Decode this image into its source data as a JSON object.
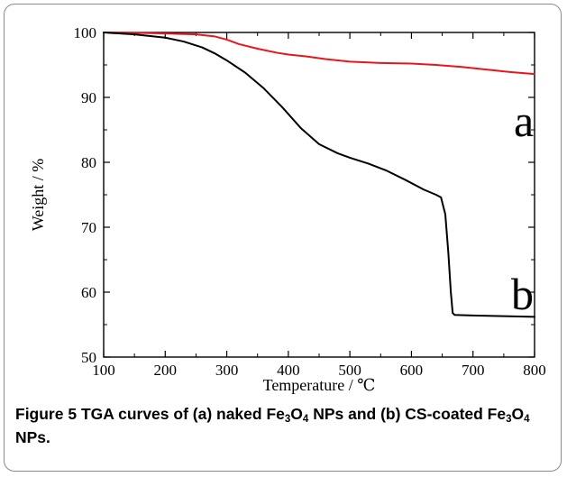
{
  "chart_data": {
    "type": "line",
    "xlabel": "Temperature / ℃",
    "ylabel": "Weight / %",
    "xlim": [
      100,
      800
    ],
    "ylim": [
      50,
      100
    ],
    "xticks": [
      100,
      200,
      300,
      400,
      500,
      600,
      700,
      800
    ],
    "yticks": [
      50,
      60,
      70,
      80,
      90,
      100
    ],
    "grid": false,
    "series": [
      {
        "name": "a",
        "color": "#e8161c",
        "x": [
          100,
          150,
          200,
          250,
          280,
          300,
          320,
          350,
          380,
          400,
          430,
          460,
          500,
          550,
          600,
          640,
          680,
          720,
          760,
          800
        ],
        "y": [
          100,
          99.95,
          99.85,
          99.7,
          99.4,
          98.9,
          98.2,
          97.5,
          96.9,
          96.6,
          96.3,
          95.9,
          95.5,
          95.3,
          95.2,
          95.0,
          94.7,
          94.3,
          93.9,
          93.6
        ]
      },
      {
        "name": "b",
        "color": "#000000",
        "x": [
          100,
          150,
          200,
          230,
          260,
          280,
          300,
          330,
          360,
          390,
          420,
          450,
          480,
          500,
          530,
          560,
          590,
          620,
          640,
          648,
          655,
          660,
          664,
          667,
          670,
          700,
          750,
          800
        ],
        "y": [
          100,
          99.7,
          99.2,
          98.6,
          97.7,
          96.8,
          95.7,
          93.8,
          91.4,
          88.5,
          85.3,
          82.8,
          81.4,
          80.7,
          79.8,
          78.7,
          77.3,
          75.8,
          75.0,
          74.6,
          72.0,
          66.0,
          60.0,
          56.8,
          56.5,
          56.4,
          56.3,
          56.2
        ]
      }
    ],
    "annotations": [
      "a",
      "b"
    ]
  },
  "caption": {
    "lead": "Figure 5",
    "text_parts": [
      " TGA curves of (a) naked Fe",
      "3",
      "O",
      "4",
      " NPs and (b) CS-coated Fe",
      "3",
      "O",
      "4",
      " NPs."
    ]
  }
}
